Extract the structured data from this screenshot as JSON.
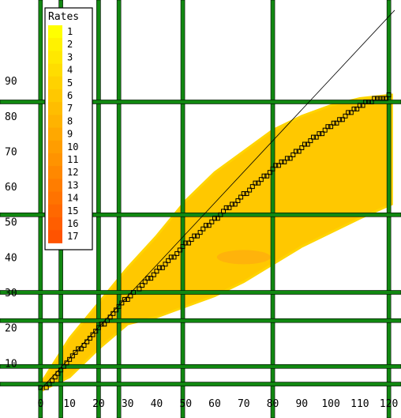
{
  "chart_data": {
    "type": "heatmap",
    "title": "",
    "xlabel": "",
    "ylabel": "",
    "xlim": [
      -2,
      122
    ],
    "ylim": [
      2,
      112
    ],
    "x_ticks": [
      0,
      10,
      20,
      30,
      40,
      50,
      60,
      70,
      80,
      90,
      100,
      110,
      120
    ],
    "x_tick_labels": [
      "0",
      "10",
      "20",
      "30",
      "40",
      "50",
      "60",
      "70",
      "80",
      "90",
      "100",
      "110",
      "120"
    ],
    "y_ticks": [
      10,
      20,
      30,
      40,
      50,
      60,
      70,
      80,
      90
    ],
    "y_tick_labels": [
      "10",
      "20",
      "30",
      "40",
      "50",
      "60",
      "70",
      "80",
      "90"
    ],
    "grid_lines_x": [
      0,
      7,
      20,
      27,
      49,
      80,
      120
    ],
    "grid_lines_y": [
      4,
      9,
      22,
      30,
      52,
      84
    ],
    "legend": {
      "title": "Rates",
      "placement": "top-left",
      "labels": [
        "1",
        "2",
        "3",
        "4",
        "5",
        "6",
        "7",
        "8",
        "9",
        "10",
        "11",
        "12",
        "13",
        "14",
        "15",
        "16",
        "17"
      ]
    },
    "reference_line": {
      "x": [
        0,
        122
      ],
      "y": [
        2.5,
        110
      ]
    },
    "band": {
      "x": [
        0,
        10,
        20,
        30,
        40,
        50,
        60,
        70,
        80,
        90,
        100,
        110,
        121
      ],
      "upper": [
        4,
        17,
        27,
        37,
        46,
        56,
        64,
        70,
        76,
        80,
        83,
        85,
        86
      ],
      "lower": [
        2,
        6,
        14,
        21,
        23,
        26,
        29,
        33,
        38,
        43,
        47,
        51,
        55
      ]
    },
    "hotspot": {
      "x": 70,
      "y": 40,
      "rate": 5
    },
    "series": [
      {
        "type": "scatter",
        "x": [
          0,
          2,
          3,
          4,
          5,
          6,
          7,
          8,
          9,
          10,
          11,
          12,
          13,
          14,
          15,
          16,
          17,
          18,
          19,
          20,
          21,
          22,
          23,
          24,
          25,
          26,
          27,
          28,
          29,
          30,
          31,
          32,
          34,
          35,
          36,
          37,
          38,
          39,
          40,
          41,
          42,
          43,
          44,
          45,
          46,
          47,
          48,
          49,
          50,
          51,
          52,
          53,
          54,
          55,
          56,
          57,
          58,
          59,
          60,
          61,
          62,
          63,
          64,
          65,
          66,
          67,
          68,
          69,
          70,
          71,
          72,
          73,
          74,
          75,
          76,
          77,
          78,
          79,
          80,
          81,
          82,
          83,
          84,
          85,
          86,
          87,
          88,
          89,
          90,
          91,
          92,
          93,
          94,
          95,
          96,
          97,
          98,
          99,
          100,
          101,
          102,
          103,
          104,
          105,
          106,
          107,
          108,
          109,
          110,
          111,
          112,
          113,
          114,
          115,
          116,
          117,
          118,
          119,
          120
        ],
        "y": [
          3,
          3,
          4,
          5,
          6,
          7,
          8,
          9,
          10,
          11,
          12,
          13,
          14,
          14,
          15,
          16,
          17,
          18,
          19,
          20,
          21,
          21,
          22,
          23,
          24,
          25,
          26,
          27,
          28,
          28,
          29,
          30,
          31,
          32,
          33,
          34,
          34,
          35,
          36,
          37,
          37,
          38,
          39,
          40,
          40,
          41,
          42,
          43,
          44,
          44,
          45,
          46,
          46,
          47,
          48,
          49,
          49,
          50,
          51,
          51,
          52,
          53,
          54,
          54,
          55,
          55,
          56,
          57,
          58,
          58,
          59,
          60,
          61,
          61,
          62,
          63,
          63,
          64,
          65,
          66,
          66,
          67,
          67,
          68,
          68,
          69,
          70,
          70,
          71,
          72,
          72,
          73,
          74,
          74,
          75,
          75,
          76,
          77,
          77,
          78,
          78,
          79,
          79,
          80,
          81,
          81,
          82,
          82,
          83,
          83,
          84,
          84,
          84,
          85,
          85,
          85,
          85,
          85,
          86
        ]
      }
    ]
  },
  "colors": {
    "background": "#ffffff",
    "grid": "#118811",
    "grid_outline": "#000000",
    "band": "#ffc800",
    "band_edge": "#ffd400",
    "hotspot": "#ff8c20",
    "point": "#000000",
    "reference_line": "#000000",
    "legend_ramp": [
      "#ffff00",
      "#fff200",
      "#ffe800",
      "#ffdd00",
      "#ffd200",
      "#ffc800",
      "#ffbd00",
      "#ffb300",
      "#ffa800",
      "#ff9d00",
      "#ff9300",
      "#ff8800",
      "#ff7d00",
      "#ff7300",
      "#ff6800",
      "#ff5e00",
      "#ff5300"
    ]
  }
}
